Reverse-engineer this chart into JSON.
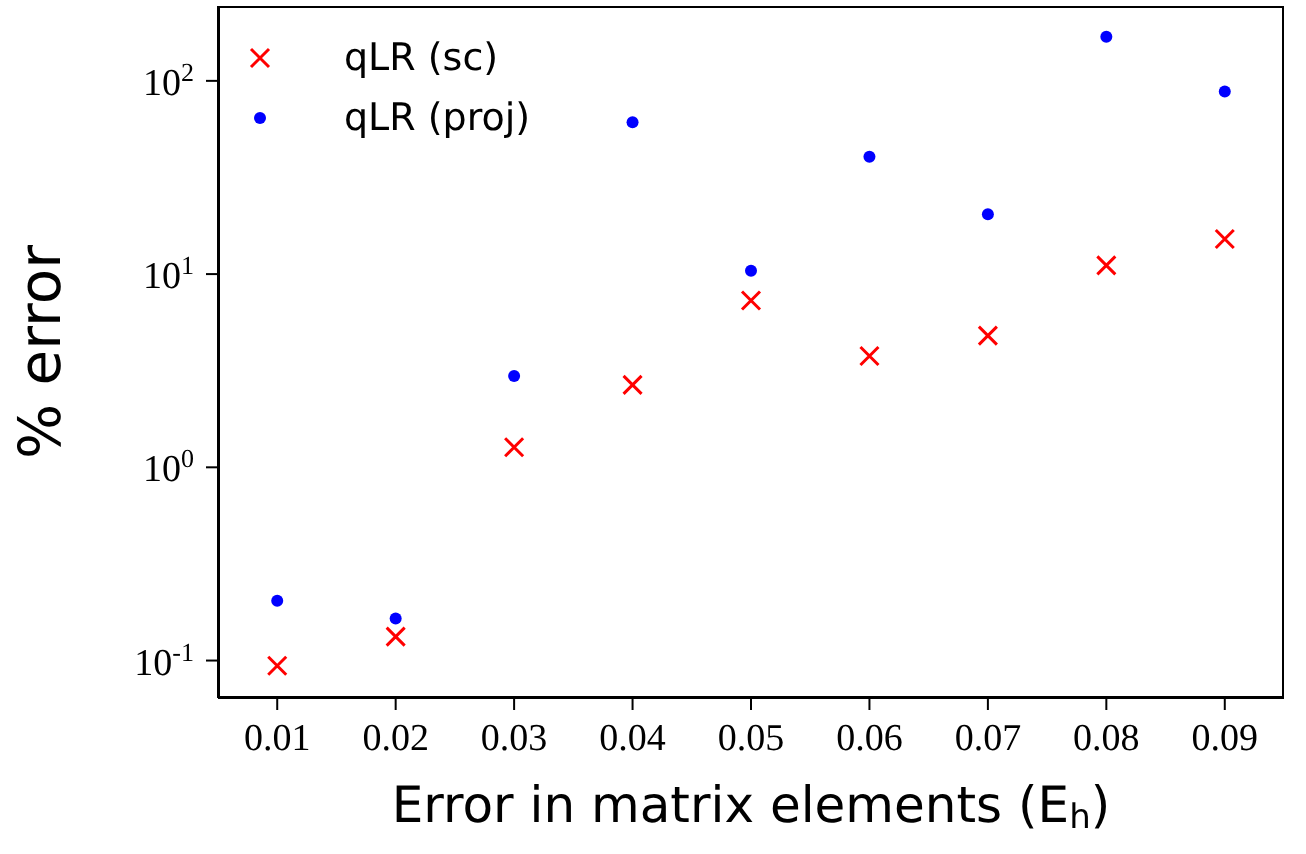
{
  "chart_data": {
    "type": "scatter",
    "xlabel": "Error in matrix elements (E$_{h}$)",
    "ylabel": "% error",
    "x": [
      0.01,
      0.02,
      0.03,
      0.04,
      0.05,
      0.06,
      0.07,
      0.08,
      0.09
    ],
    "series": [
      {
        "name": "qLR (sc)",
        "color": "#ff0000",
        "marker": "cross",
        "values": [
          0.094,
          0.133,
          1.27,
          2.67,
          7.3,
          3.77,
          4.8,
          11.1,
          15.2
        ]
      },
      {
        "name": "qLR (proj)",
        "color": "#0000ff",
        "marker": "circle",
        "values": [
          0.204,
          0.165,
          2.97,
          61,
          10.4,
          40.5,
          20.4,
          169,
          88
        ]
      }
    ],
    "log": "y",
    "xlim": [
      0.005,
      0.095
    ],
    "xticks": [
      0.01,
      0.02,
      0.03,
      0.04,
      0.05,
      0.06,
      0.07,
      0.08,
      0.09
    ],
    "ylim": [
      0.064,
      244
    ],
    "yticks": [
      {
        "value": 0.1,
        "label": "10$^{-1}$"
      },
      {
        "value": 1,
        "label": "10$^{0}$"
      },
      {
        "value": 10,
        "label": "10$^{1}$"
      },
      {
        "value": 100,
        "label": "10$^{2}$"
      }
    ],
    "grid": false,
    "legend": "top left"
  }
}
